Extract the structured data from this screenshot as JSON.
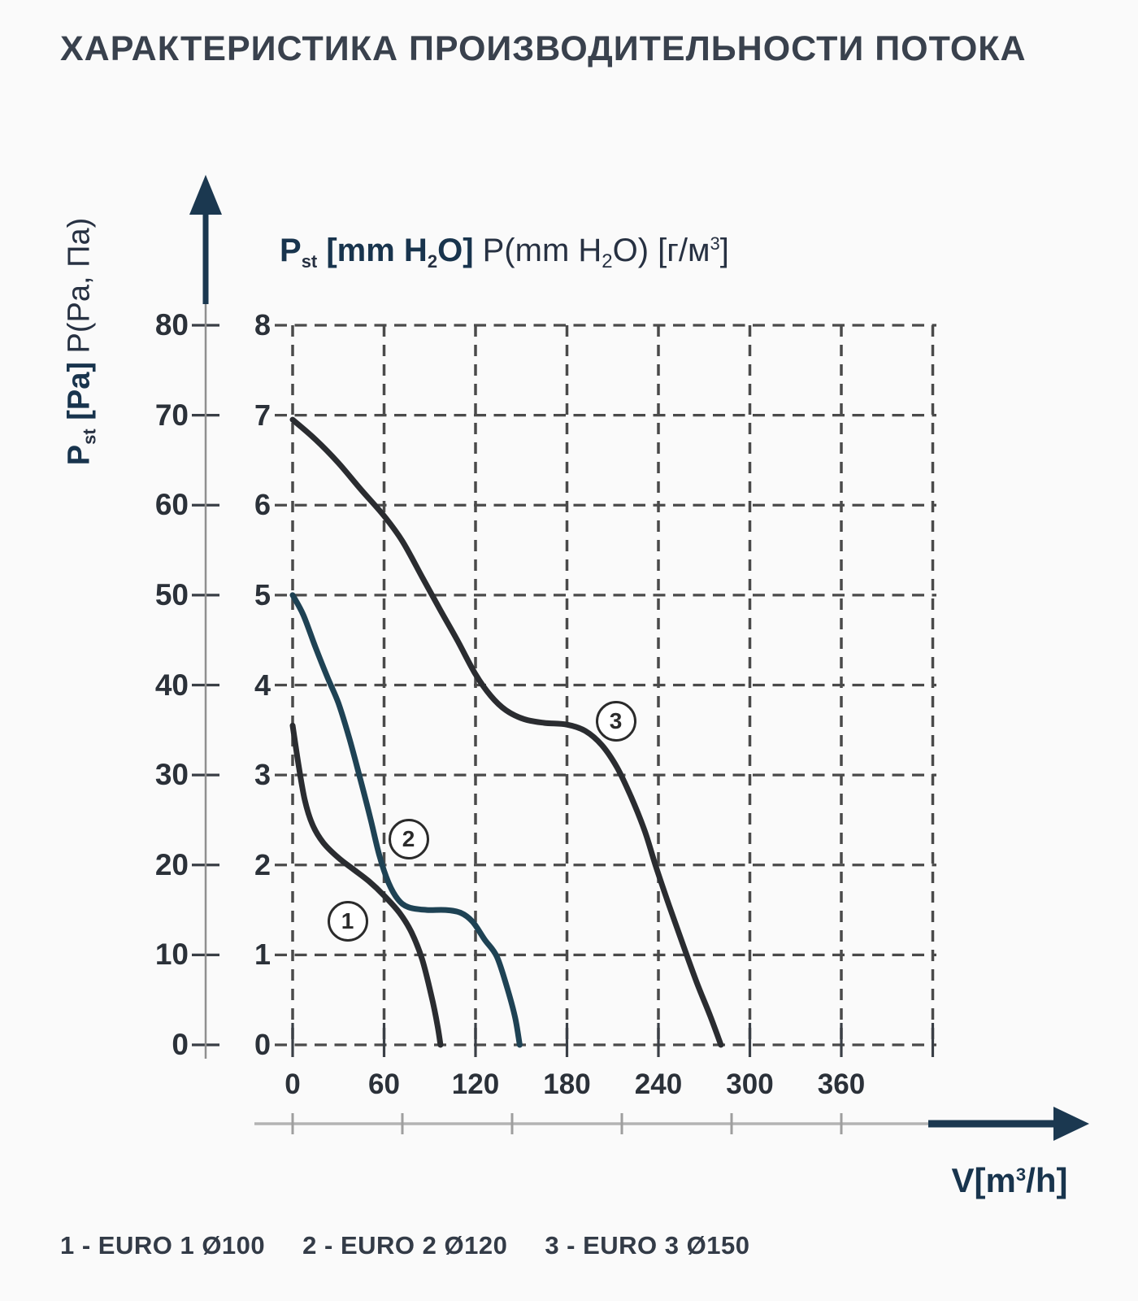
{
  "title": "ХАРАКТЕРИСТИКА ПРОИЗВОДИТЕЛЬНОСТИ ПОТОКА",
  "axes": {
    "primary_y_label": {
      "p": "P",
      "sub_st": "st",
      "bold_rest": " [Pa] ",
      "regular": "P(Pa, Па)"
    },
    "secondary_y_label": {
      "p": "P",
      "sub_st": "st",
      "bold_a": " [mm H",
      "sub2a": "2",
      "bold_b": "O] ",
      "reg_a": "P(mm H",
      "sub2b": "2",
      "reg_b": "O) [г/м",
      "sup3": "3",
      "reg_c": "]"
    },
    "x_unit": {
      "a": "V[m",
      "sup": "3",
      "b": "/h]"
    }
  },
  "legend": [
    "1 - EURO 1 Ø100",
    "2 - EURO 2 Ø120",
    "3 - EURO 3 Ø150"
  ],
  "colors": {
    "navy_accent": "#1b3850",
    "curve_dark": "#2a2c30",
    "curve_teal": "#1e4254",
    "grid": "#4a4a4a",
    "axis_thin": "#8f8f8f",
    "ruler_gray": "#b3b3b3",
    "text_dark": "#2b3139"
  },
  "chart_data": {
    "type": "line",
    "title": "ХАРАКТЕРИСТИКА ПРОИЗВОДИТЕЛЬНОСТИ ПОТОКА",
    "xlabel": "V[m³/h]",
    "ylabel_primary": "Pst [Pa] P(Pa, Па)",
    "ylabel_secondary": "Pst [mm H₂O] P(mm H₂O) [г/м³]",
    "x_ticks": [
      0,
      60,
      120,
      180,
      240,
      300,
      360
    ],
    "xlim": [
      0,
      420
    ],
    "y_ticks_pa": [
      0,
      10,
      20,
      30,
      40,
      50,
      60,
      70,
      80
    ],
    "y_ticks_mmh2o": [
      0,
      1,
      2,
      3,
      4,
      5,
      6,
      7,
      8
    ],
    "ylim_mmh2o": [
      0,
      8
    ],
    "grid": "dashed",
    "legend_position": "bottom",
    "series": [
      {
        "name": "EURO 1 Ø100",
        "marker": "1",
        "color": "#2a2c30",
        "points": [
          [
            0,
            3.55
          ],
          [
            4,
            3.1
          ],
          [
            8,
            2.72
          ],
          [
            13,
            2.45
          ],
          [
            20,
            2.25
          ],
          [
            30,
            2.08
          ],
          [
            40,
            1.95
          ],
          [
            50,
            1.82
          ],
          [
            60,
            1.66
          ],
          [
            70,
            1.47
          ],
          [
            78,
            1.25
          ],
          [
            85,
            0.95
          ],
          [
            91,
            0.55
          ],
          [
            95,
            0.22
          ],
          [
            97,
            0
          ]
        ]
      },
      {
        "name": "EURO 2 Ø120",
        "marker": "2",
        "color": "#1e4254",
        "points": [
          [
            0,
            5.0
          ],
          [
            7,
            4.78
          ],
          [
            15,
            4.42
          ],
          [
            23,
            4.08
          ],
          [
            30,
            3.8
          ],
          [
            37,
            3.42
          ],
          [
            44,
            2.98
          ],
          [
            51,
            2.52
          ],
          [
            57,
            2.1
          ],
          [
            63,
            1.8
          ],
          [
            69,
            1.62
          ],
          [
            76,
            1.53
          ],
          [
            88,
            1.5
          ],
          [
            100,
            1.5
          ],
          [
            110,
            1.47
          ],
          [
            118,
            1.37
          ],
          [
            126,
            1.17
          ],
          [
            134,
            0.98
          ],
          [
            141,
            0.62
          ],
          [
            146,
            0.3
          ],
          [
            149,
            0
          ]
        ]
      },
      {
        "name": "EURO 3 Ø150",
        "marker": "3",
        "color": "#2a2c30",
        "points": [
          [
            0,
            6.95
          ],
          [
            15,
            6.73
          ],
          [
            30,
            6.47
          ],
          [
            45,
            6.17
          ],
          [
            60,
            5.88
          ],
          [
            72,
            5.6
          ],
          [
            85,
            5.2
          ],
          [
            97,
            4.83
          ],
          [
            108,
            4.5
          ],
          [
            120,
            4.12
          ],
          [
            130,
            3.88
          ],
          [
            140,
            3.72
          ],
          [
            152,
            3.62
          ],
          [
            165,
            3.58
          ],
          [
            180,
            3.56
          ],
          [
            192,
            3.49
          ],
          [
            203,
            3.33
          ],
          [
            213,
            3.08
          ],
          [
            222,
            2.76
          ],
          [
            231,
            2.38
          ],
          [
            238,
            2.0
          ],
          [
            247,
            1.55
          ],
          [
            256,
            1.12
          ],
          [
            265,
            0.7
          ],
          [
            274,
            0.32
          ],
          [
            281,
            0
          ]
        ]
      }
    ],
    "annotations": [
      {
        "label": "1",
        "V": 36,
        "P": 1.37
      },
      {
        "label": "2",
        "V": 76,
        "P": 2.29
      },
      {
        "label": "3",
        "V": 212,
        "P": 3.6
      }
    ]
  }
}
